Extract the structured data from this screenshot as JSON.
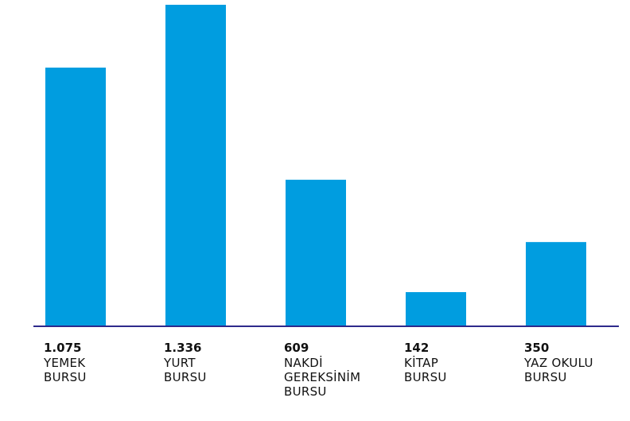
{
  "chart_data": {
    "type": "bar",
    "categories": [
      "YEMEK\nBURSU",
      "YURT\nBURSU",
      "NAKDİ\nGEREKSİNİM\nBURSU",
      "KİTAP\nBURSU",
      "YAZ OKULU\nBURSU"
    ],
    "values": [
      1075,
      1336,
      609,
      142,
      350
    ],
    "value_labels": [
      "1.075",
      "1.336",
      "609",
      "142",
      "350"
    ],
    "color": "#009de0"
  }
}
